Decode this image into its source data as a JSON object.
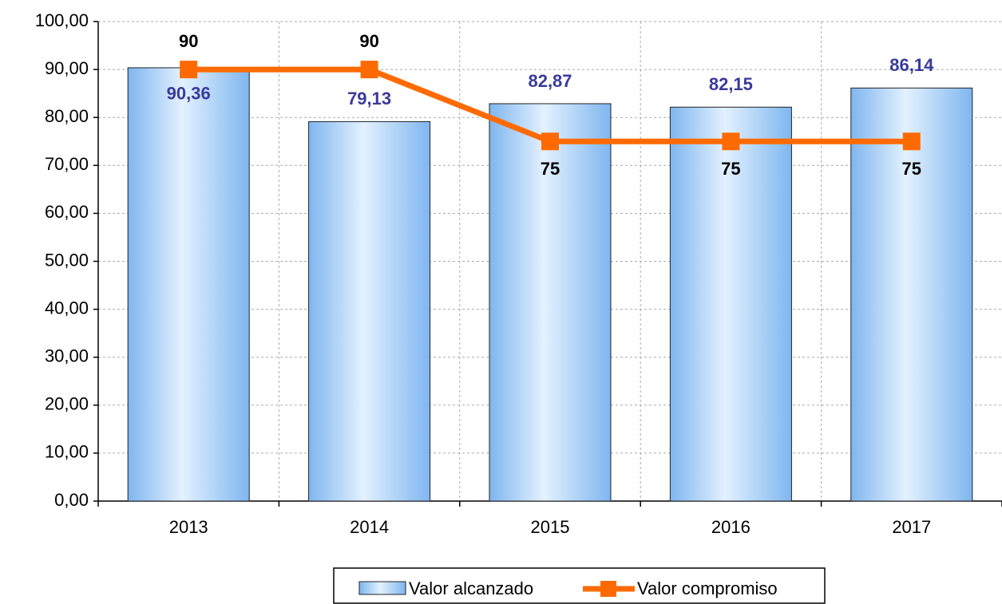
{
  "chart_data": {
    "type": "bar+line",
    "categories": [
      "2013",
      "2014",
      "2015",
      "2016",
      "2017"
    ],
    "series": [
      {
        "name": "Valor alcanzado",
        "type": "bar",
        "color": "#7fb6ef",
        "label_color": "#3a3a9a",
        "values": [
          90.36,
          79.13,
          82.87,
          82.15,
          86.14
        ],
        "value_labels": [
          "90,36",
          "79,13",
          "82,87",
          "82,15",
          "86,14"
        ]
      },
      {
        "name": "Valor compromiso",
        "type": "line",
        "color": "#ff6a00",
        "label_color": "#000000",
        "values": [
          90,
          90,
          75,
          75,
          75
        ]
      }
    ],
    "ylim": [
      0,
      100
    ],
    "yticks": [
      {
        "value": 0,
        "label": "0,00"
      },
      {
        "value": 10,
        "label": "10,00"
      },
      {
        "value": 20,
        "label": "20,00"
      },
      {
        "value": 30,
        "label": "30,00"
      },
      {
        "value": 40,
        "label": "40,00"
      },
      {
        "value": 50,
        "label": "50,00"
      },
      {
        "value": 60,
        "label": "60,00"
      },
      {
        "value": 70,
        "label": "70,00"
      },
      {
        "value": 80,
        "label": "80,00"
      },
      {
        "value": 90,
        "label": "90,00"
      },
      {
        "value": 100,
        "label": "100,00"
      }
    ],
    "grid": true,
    "legend": "bottom"
  }
}
